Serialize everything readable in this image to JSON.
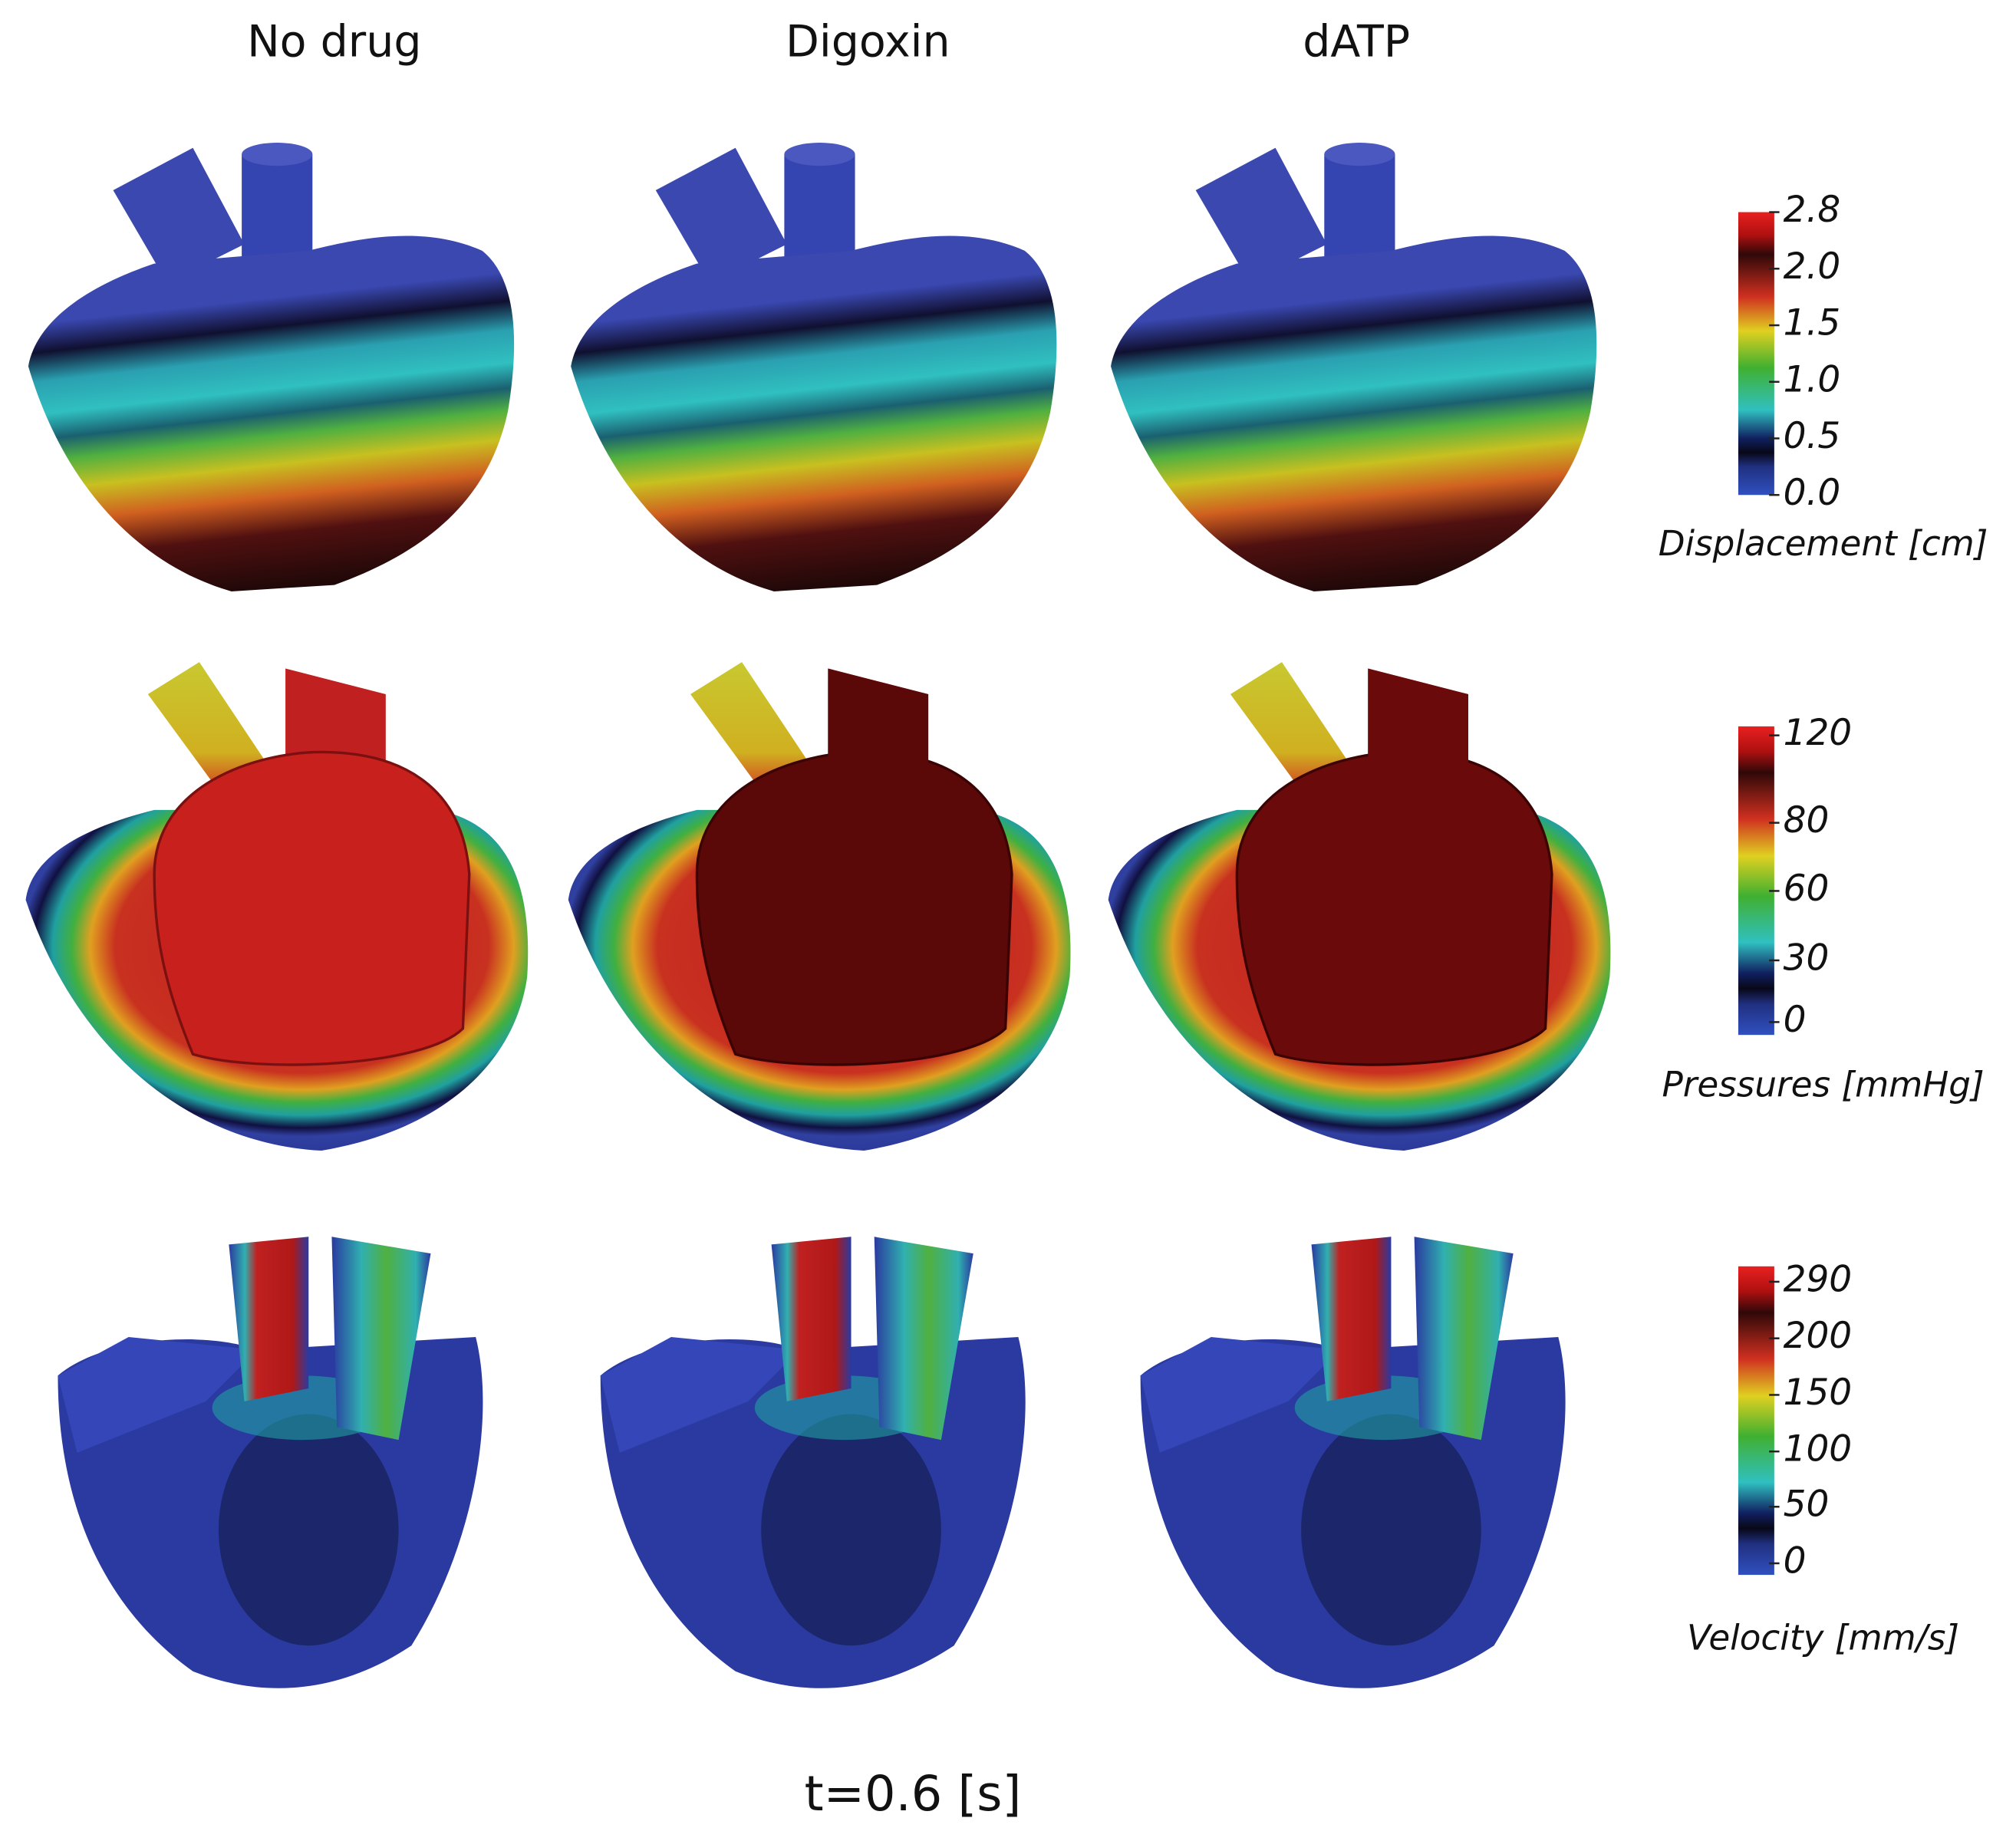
{
  "columns": [
    "No drug",
    "Digoxin",
    "dATP"
  ],
  "colorbars": [
    {
      "ticks": [
        "2.8",
        "2.0",
        "1.5",
        "1.0",
        "0.5",
        "0.0"
      ],
      "label": "Displacement [cm]"
    },
    {
      "ticks": [
        "120",
        "80",
        "60",
        "30",
        "0"
      ],
      "label": "Pressures [mmHg]"
    },
    {
      "ticks": [
        "290",
        "200",
        "150",
        "100",
        "50",
        "0"
      ],
      "label": "Velocity [mm/s]"
    }
  ],
  "time_label": "t=0.6 [s]"
}
